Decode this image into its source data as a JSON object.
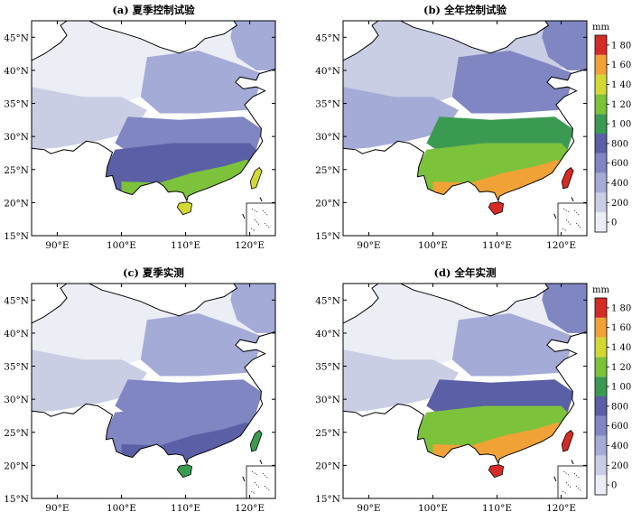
{
  "panels": [
    {
      "title": "(a) 夏季控制试验",
      "colorbar": null,
      "region_levels": {
        "nw": 0,
        "tibet": 1,
        "ne": 2,
        "north": 2,
        "sichuan": 3,
        "south": 4,
        "southcoast": 6
      }
    },
    {
      "title": "(b) 全年控制试验",
      "colorbar": {
        "unit": "mm"
      },
      "region_levels": {
        "nw": 1,
        "tibet": 2,
        "ne": 3,
        "north": 3,
        "sichuan": 5,
        "south": 6,
        "southcoast": 8
      }
    },
    {
      "title": "(c) 夏季实测",
      "colorbar": null,
      "region_levels": {
        "nw": 0,
        "tibet": 1,
        "ne": 2,
        "north": 2,
        "sichuan": 3,
        "south": 3,
        "southcoast": 4
      }
    },
    {
      "title": "(d) 全年实测",
      "colorbar": {
        "unit": "mm"
      },
      "region_levels": {
        "nw": 0,
        "tibet": 1,
        "ne": 3,
        "north": 2,
        "sichuan": 4,
        "south": 6,
        "southcoast": 8
      }
    }
  ],
  "lat_labels": [
    "15°N",
    "20°N",
    "25°N",
    "30°N",
    "35°N",
    "40°N",
    "45°N"
  ],
  "lon_labels": [
    "90°E",
    "100°E",
    "110°E",
    "120°E"
  ],
  "colorbar_levels": [
    "0",
    "200",
    "400",
    "600",
    "800",
    "1 000",
    "1 200",
    "1 400",
    "1 600",
    "1 800"
  ],
  "colors": [
    "#eceef5",
    "#c9cee5",
    "#a4abd6",
    "#7f86c2",
    "#5a5fa6",
    "#3b9a52",
    "#7cc23b",
    "#d3d934",
    "#f0a236",
    "#d62b25"
  ]
}
